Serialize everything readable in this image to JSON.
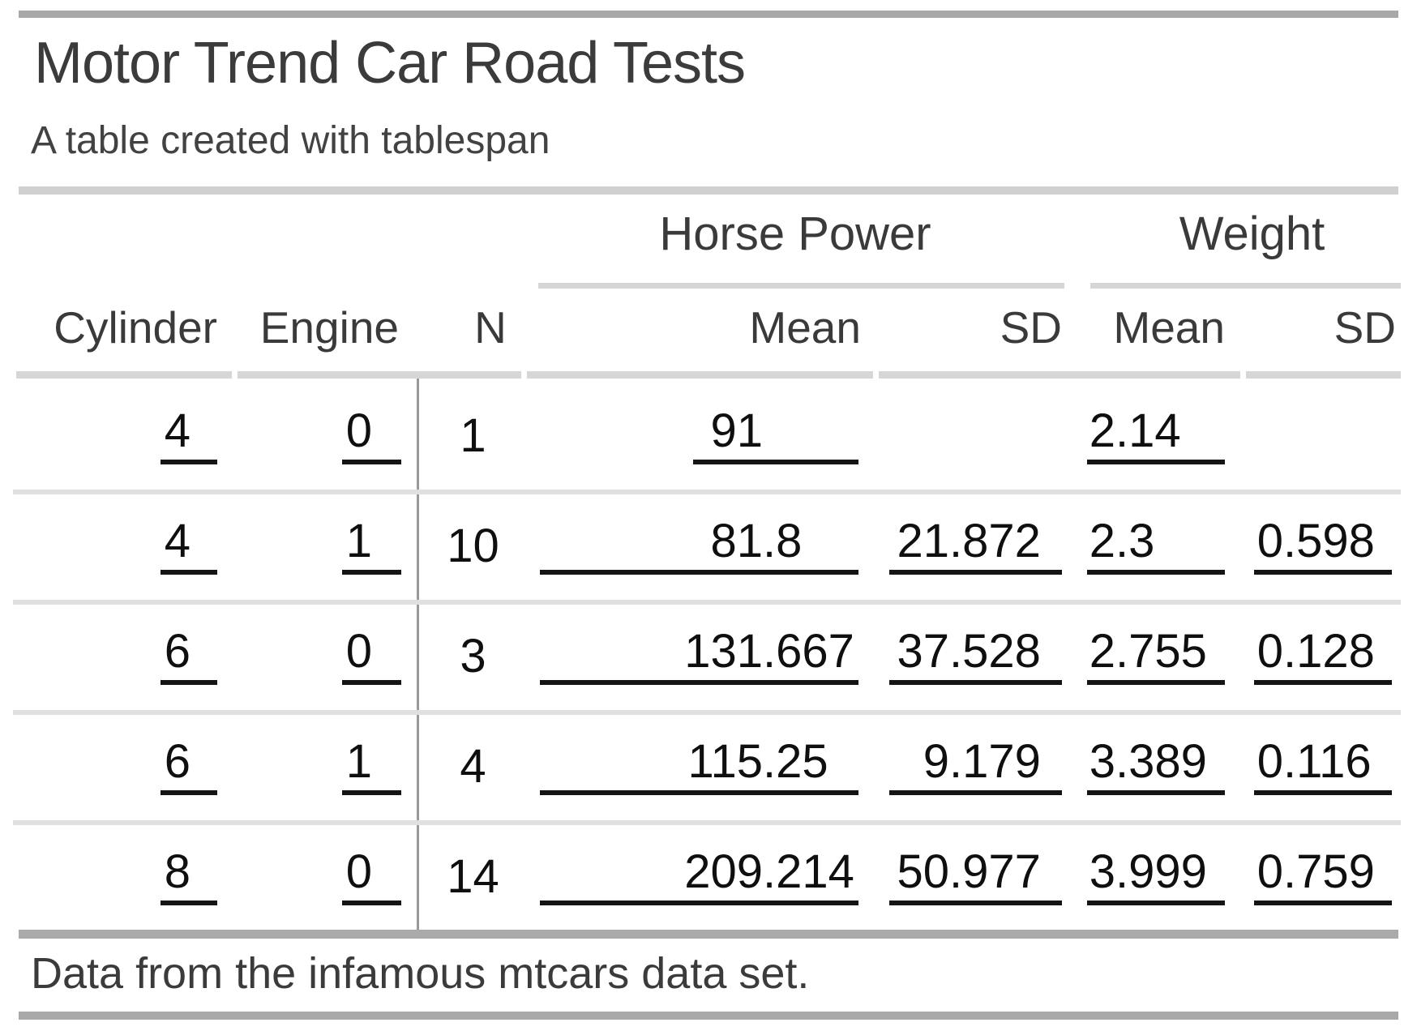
{
  "table": {
    "title": "Motor Trend Car Road Tests",
    "subtitle": "A table created with tablespan",
    "footnote": "Data from the infamous mtcars data set.",
    "spanners": {
      "horse_power": "Horse Power",
      "weight": "Weight"
    },
    "columns": [
      "Cylinder",
      "Engine",
      "N",
      "Mean",
      "SD",
      "Mean",
      "SD"
    ],
    "rows": [
      {
        "cylinder": "4",
        "engine": "0",
        "n": "1",
        "hp_mean": "91",
        "hp_sd": "",
        "wt_mean": "2.14",
        "wt_sd": ""
      },
      {
        "cylinder": "4",
        "engine": "1",
        "n": "10",
        "hp_mean": "81.8",
        "hp_sd": "21.872",
        "wt_mean": "2.3",
        "wt_sd": "0.598"
      },
      {
        "cylinder": "6",
        "engine": "0",
        "n": "3",
        "hp_mean": "131.667",
        "hp_sd": "37.528",
        "wt_mean": "2.755",
        "wt_sd": "0.128"
      },
      {
        "cylinder": "6",
        "engine": "1",
        "n": "4",
        "hp_mean": "115.25",
        "hp_sd": "9.179",
        "wt_mean": "3.389",
        "wt_sd": "0.116"
      },
      {
        "cylinder": "8",
        "engine": "0",
        "n": "14",
        "hp_mean": "209.214",
        "hp_sd": "50.977",
        "wt_mean": "3.999",
        "wt_sd": "0.759"
      }
    ],
    "colors": {
      "rule_dark": "#a8a8a8",
      "rule_light": "#d6d6d6",
      "row_separator": "#e0e0e0",
      "value_underline": "#151515",
      "text": "#3b3b3b"
    }
  }
}
